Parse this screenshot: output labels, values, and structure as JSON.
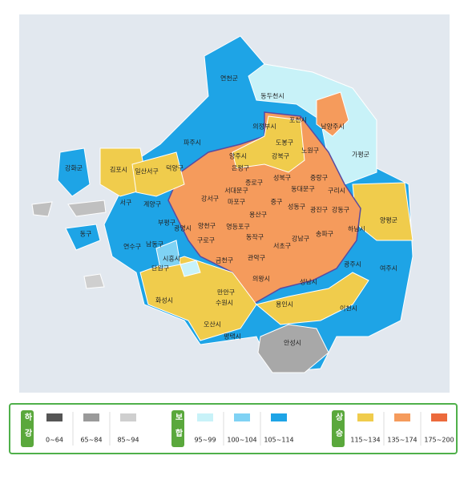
{
  "map": {
    "regions": [
      "연천군",
      "동두천시",
      "포천시",
      "파주시",
      "양주시",
      "의정부시",
      "남양주시",
      "가평군",
      "강화군",
      "김포시",
      "일산서구",
      "덕양구",
      "도봉구",
      "강북구",
      "노원구",
      "은평구",
      "성북구",
      "중랑구",
      "종로구",
      "서대문구",
      "동대문구",
      "구리시",
      "마포구",
      "중구",
      "성동구",
      "광진구",
      "강서구",
      "용산구",
      "강동구",
      "양천구",
      "영등포구",
      "동작구",
      "송파구",
      "강남구",
      "서초구",
      "구로구",
      "금천구",
      "관악구",
      "하남시",
      "양평군",
      "서구",
      "계양구",
      "부평구",
      "남동구",
      "연수구",
      "동구",
      "광명시",
      "시흥시",
      "단원구",
      "만안구",
      "성남시",
      "광주시",
      "여주시",
      "화성시",
      "수원시",
      "용인시",
      "의왕시",
      "오산시",
      "이천시",
      "평택시",
      "안성시"
    ]
  },
  "legend": {
    "groups": [
      {
        "label": "하강",
        "items": [
          "0~64",
          "65~84",
          "85~94"
        ],
        "colors": [
          "#555555",
          "#9a9a9a",
          "#cfcfcf"
        ]
      },
      {
        "label": "보합",
        "items": [
          "95~99",
          "100~104",
          "105~114"
        ],
        "colors": [
          "#c8f2f8",
          "#7fd2f4",
          "#1ea4e6"
        ]
      },
      {
        "label": "상승",
        "items": [
          "115~134",
          "135~174",
          "175~200"
        ],
        "colors": [
          "#f0cc4c",
          "#f59b5c",
          "#ec6a3c"
        ]
      }
    ]
  }
}
